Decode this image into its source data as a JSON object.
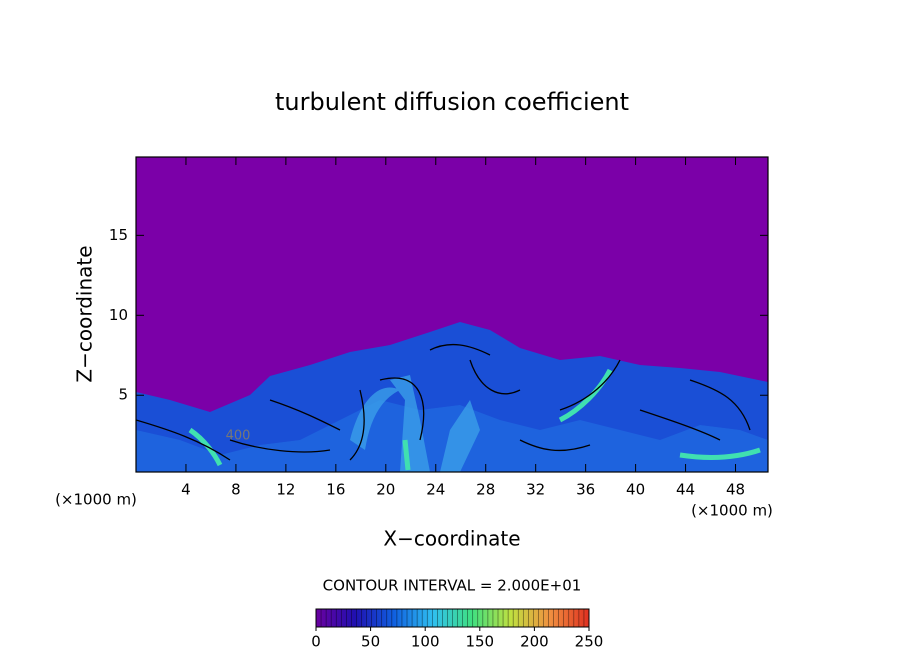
{
  "chart_data": {
    "type": "heatmap",
    "title": "turbulent diffusion coefficient",
    "xlabel": "X−coordinate",
    "ylabel": "Z−coordinate",
    "x_unit": "(×1000 m)",
    "y_unit": "(×1000 m)",
    "xlim": [
      0,
      50.6
    ],
    "ylim": [
      0.2,
      19.9
    ],
    "xticks": [
      4,
      8,
      12,
      16,
      20,
      24,
      28,
      32,
      36,
      40,
      44,
      48
    ],
    "yticks": [
      5,
      10,
      15
    ],
    "annotations": [
      "400"
    ],
    "background_color": "#7b00a8",
    "colorbar": {
      "label": "CONTOUR INTERVAL = 2.000E+01",
      "lim": [
        0,
        250
      ],
      "ticks": [
        0,
        50,
        100,
        150,
        200,
        250
      ],
      "colors": [
        "#6a00a0",
        "#2010b0",
        "#1060e0",
        "#30c0f0",
        "#40e080",
        "#c0e040",
        "#f09040",
        "#e03020"
      ]
    }
  }
}
